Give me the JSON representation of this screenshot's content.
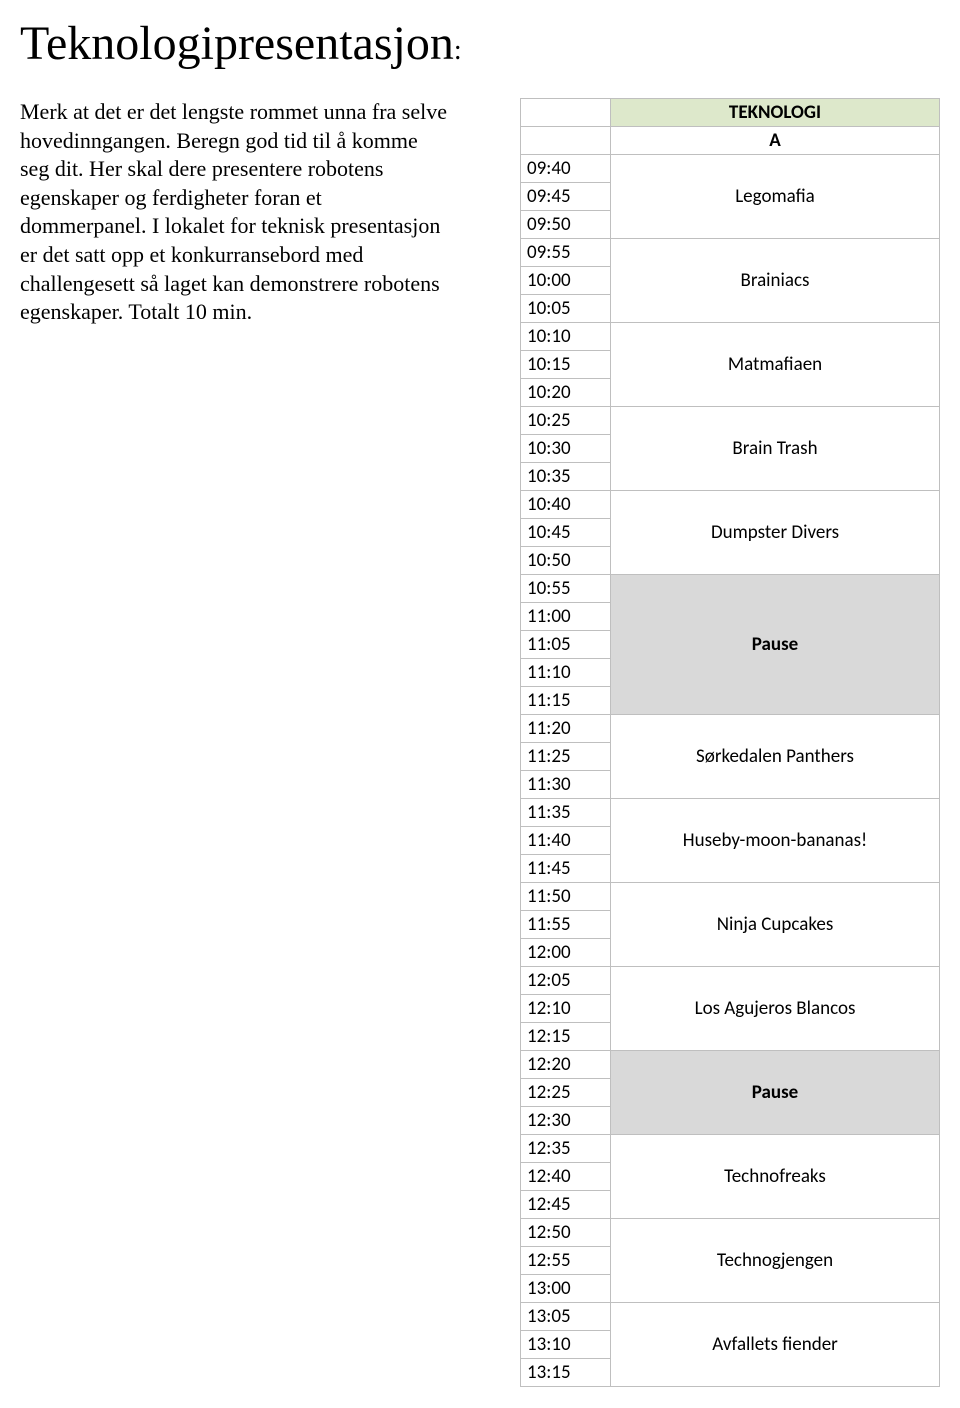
{
  "title": "Teknologipresentasjon",
  "title_colon": ":",
  "body": "Merk at det er det lengste rommet unna fra selve hovedinngangen. Beregn god tid til å komme seg dit. Her skal dere presentere robotens egenskaper og ferdigheter foran et dommerpanel. I lokalet for teknisk presentasjon er det satt opp et konkurransebord med challengesett så laget kan demonstrere robotens egenskaper. Totalt 10 min.",
  "schedule": {
    "header1": "TEKNOLOGI",
    "header2": "A",
    "rows": [
      {
        "time": "09:40",
        "start": true,
        "label": "Legomafia",
        "span": 3,
        "bg": null,
        "bold": false
      },
      {
        "time": "09:45"
      },
      {
        "time": "09:50"
      },
      {
        "time": "09:55",
        "start": true,
        "label": "Brainiacs",
        "span": 3,
        "bg": null,
        "bold": false
      },
      {
        "time": "10:00"
      },
      {
        "time": "10:05"
      },
      {
        "time": "10:10",
        "start": true,
        "label": "Matmafiaen",
        "span": 3,
        "bg": null,
        "bold": false
      },
      {
        "time": "10:15"
      },
      {
        "time": "10:20"
      },
      {
        "time": "10:25",
        "start": true,
        "label": "Brain Trash",
        "span": 3,
        "bg": null,
        "bold": false
      },
      {
        "time": "10:30"
      },
      {
        "time": "10:35"
      },
      {
        "time": "10:40",
        "start": true,
        "label": "Dumpster Divers",
        "span": 3,
        "bg": null,
        "bold": false
      },
      {
        "time": "10:45"
      },
      {
        "time": "10:50"
      },
      {
        "time": "10:55",
        "start": true,
        "label": "Pause",
        "span": 5,
        "bg": "pause",
        "bold": true
      },
      {
        "time": "11:00"
      },
      {
        "time": "11:05"
      },
      {
        "time": "11:10"
      },
      {
        "time": "11:15"
      },
      {
        "time": "11:20",
        "start": true,
        "label": "Sørkedalen Panthers",
        "span": 3,
        "bg": null,
        "bold": false
      },
      {
        "time": "11:25"
      },
      {
        "time": "11:30"
      },
      {
        "time": "11:35",
        "start": true,
        "label": "Huseby-moon-bananas!",
        "span": 3,
        "bg": null,
        "bold": false
      },
      {
        "time": "11:40"
      },
      {
        "time": "11:45"
      },
      {
        "time": "11:50",
        "start": true,
        "label": "Ninja Cupcakes",
        "span": 3,
        "bg": null,
        "bold": false
      },
      {
        "time": "11:55"
      },
      {
        "time": "12:00"
      },
      {
        "time": "12:05",
        "start": true,
        "label": "Los Agujeros Blancos",
        "span": 3,
        "bg": null,
        "bold": false
      },
      {
        "time": "12:10"
      },
      {
        "time": "12:15"
      },
      {
        "time": "12:20",
        "start": true,
        "label": "Pause",
        "span": 3,
        "bg": "pause",
        "bold": true
      },
      {
        "time": "12:25"
      },
      {
        "time": "12:30"
      },
      {
        "time": "12:35",
        "start": true,
        "label": "Technofreaks",
        "span": 3,
        "bg": null,
        "bold": false
      },
      {
        "time": "12:40"
      },
      {
        "time": "12:45"
      },
      {
        "time": "12:50",
        "start": true,
        "label": "Technogjengen",
        "span": 3,
        "bg": null,
        "bold": false
      },
      {
        "time": "12:55"
      },
      {
        "time": "13:00"
      },
      {
        "time": "13:05",
        "start": true,
        "label": "Avfallets fiender",
        "span": 3,
        "bg": null,
        "bold": false
      },
      {
        "time": "13:10"
      },
      {
        "time": "13:15"
      }
    ]
  },
  "colors": {
    "header_green": "#dde8cb",
    "pause_gray": "#d9d9d9",
    "border": "#bfbfbf",
    "bg": "#ffffff",
    "text": "#000000"
  }
}
